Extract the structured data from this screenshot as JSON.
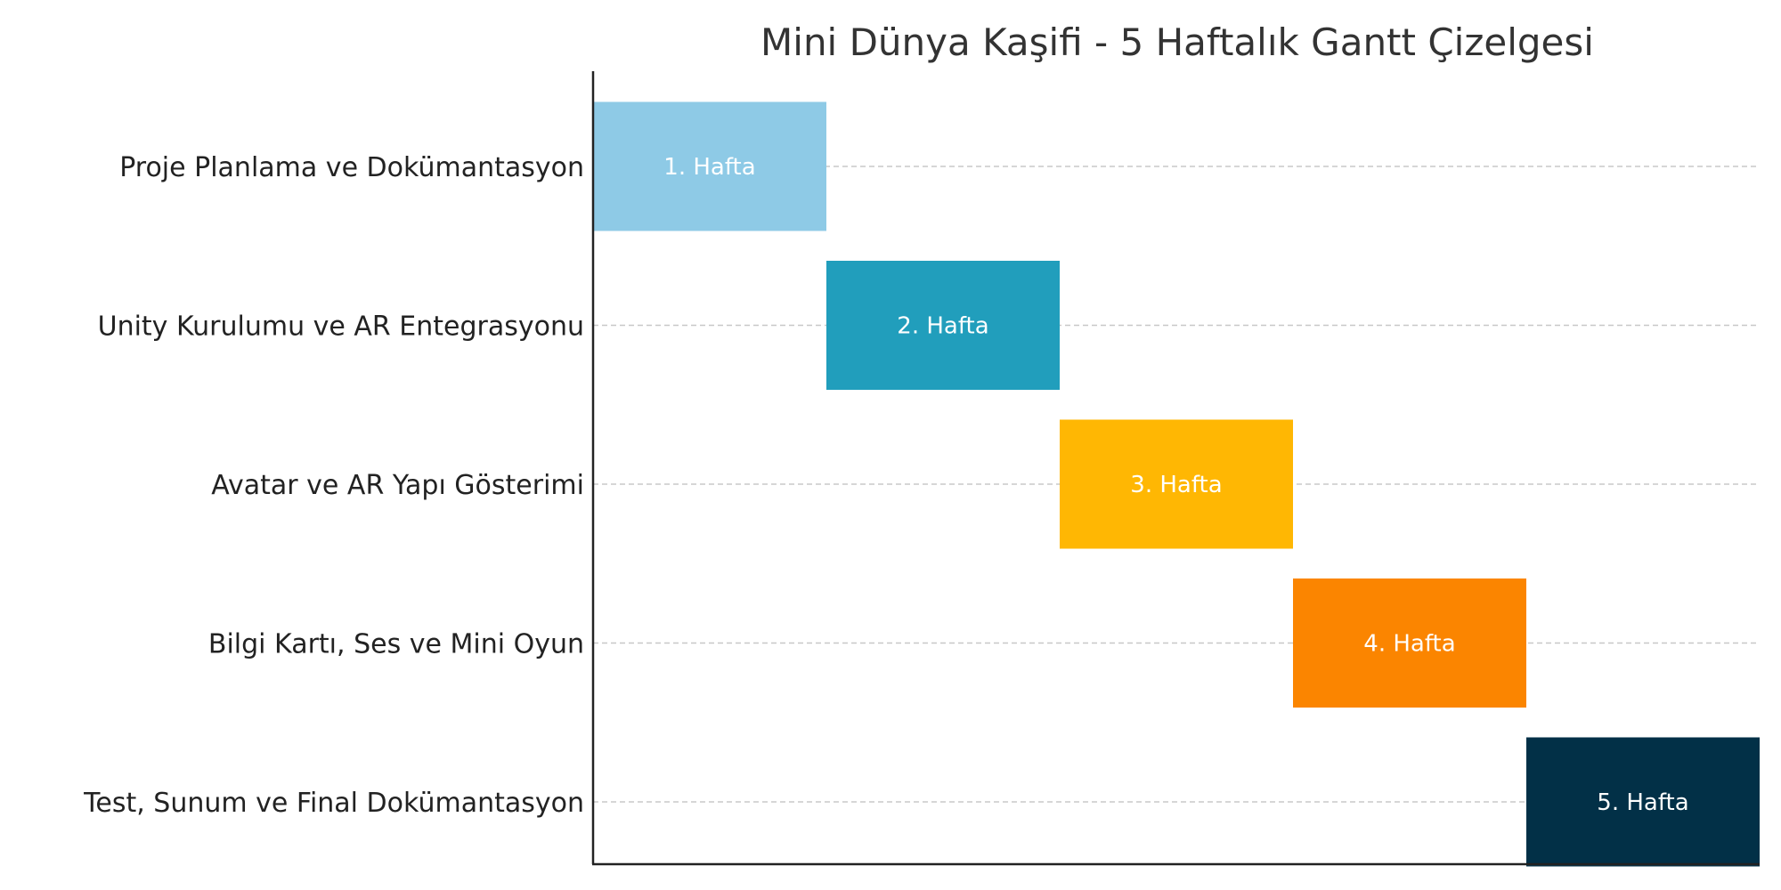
{
  "chart_data": {
    "type": "bar",
    "orientation": "horizontal",
    "chart_style": "gantt",
    "title": "Mini Dünya Kaşifi - 5 Haftalık Gantt Çizelgesi",
    "xlabel": "",
    "ylabel": "",
    "xlim": [
      0,
      5
    ],
    "grid": "horizontal-dashed",
    "legend": "none",
    "x_ticks_visible": false,
    "tasks": [
      {
        "name": "Proje Planlama ve Dokümantasyon",
        "start": 0,
        "end": 1,
        "label": "1. Hafta",
        "color": "#8ecae6"
      },
      {
        "name": "Unity Kurulumu ve AR Entegrasyonu",
        "start": 1,
        "end": 2,
        "label": "2. Hafta",
        "color": "#219ebc"
      },
      {
        "name": "Avatar ve AR Yapı Gösterimi",
        "start": 2,
        "end": 3,
        "label": "3. Hafta",
        "color": "#ffb703"
      },
      {
        "name": "Bilgi Kartı, Ses ve Mini Oyun",
        "start": 3,
        "end": 4,
        "label": "4. Hafta",
        "color": "#fb8500"
      },
      {
        "name": "Test, Sunum ve Final Dokümantasyon",
        "start": 4,
        "end": 5,
        "label": "5. Hafta",
        "color": "#023047"
      }
    ]
  }
}
